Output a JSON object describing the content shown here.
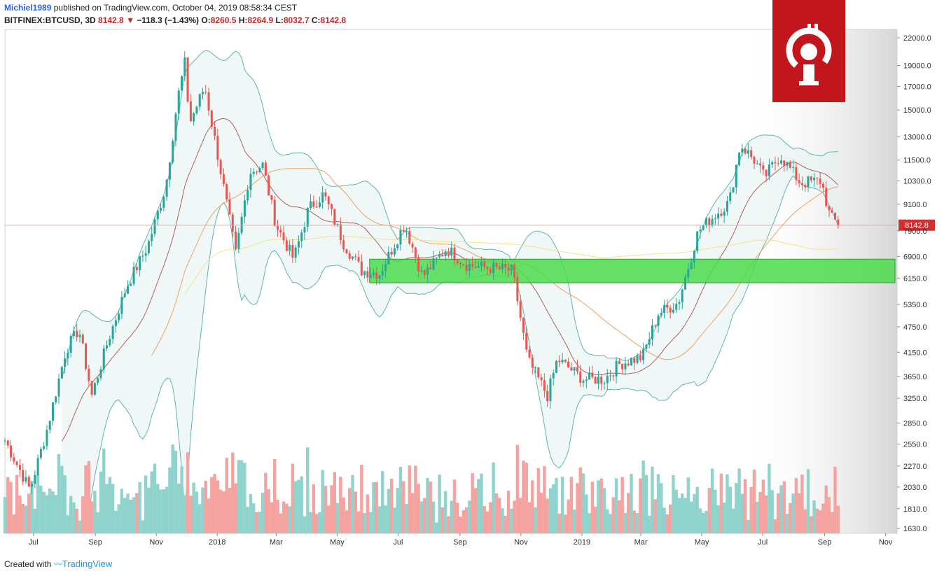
{
  "header": {
    "user": "Michiel1989",
    "published_text": "published on TradingView.com, October 04, 2019 08:58:34 CEST",
    "symbol": "BITFINEX:BTCUSD, 3D",
    "last": "8142.8",
    "change": "−118.3 (−1.43%)",
    "o_label": "O:",
    "o_value": "8260.5",
    "h_label": "H:",
    "h_value": "8264.9",
    "l_label": "L:",
    "l_value": "8032.7",
    "c_label": "C:",
    "c_value": "8142.8"
  },
  "footer": {
    "created_with": "Created with",
    "brand": "TradingView"
  },
  "colors": {
    "up": "#26a69a",
    "down": "#ef5350",
    "support_zone": "#4cdb4c",
    "logo_bg": "#c3161c",
    "price_tag": "#d32f2f"
  },
  "logo": {
    "icon": "bitcoin-info-logo-icon"
  },
  "chart_data": {
    "type": "candlestick",
    "y_scale": "log",
    "ylim": [
      1630,
      22000
    ],
    "y_ticks": [
      22000,
      19000,
      17000,
      15000,
      13000,
      11500,
      10300,
      9100,
      7900,
      6900,
      6150,
      5350,
      4750,
      4150,
      3650,
      3250,
      2850,
      2550,
      2270,
      2030,
      1810,
      1630
    ],
    "y_tick_labels": [
      "22000.0",
      "19000.0",
      "17000.0",
      "15000.0",
      "13000.0",
      "11500.0",
      "10300.0",
      "9100.0",
      "7900.0",
      "6900.0",
      "6150.0",
      "5350.0",
      "4750.0",
      "4150.0",
      "3650.0",
      "3250.0",
      "2850.0",
      "2550.0",
      "2270.0",
      "2030.0",
      "1810.0",
      "1630.0"
    ],
    "x_labels": [
      "Jul",
      "Sep",
      "Nov",
      "2018",
      "Mar",
      "May",
      "Jul",
      "Sep",
      "Nov",
      "2019",
      "Mar",
      "May",
      "Jul",
      "Sep",
      "Nov"
    ],
    "x_label_dates": [
      "2017-07-01",
      "2017-09-01",
      "2017-11-01",
      "2018-01-01",
      "2018-03-01",
      "2018-05-01",
      "2018-07-01",
      "2018-09-01",
      "2018-11-01",
      "2019-01-01",
      "2019-03-01",
      "2019-05-01",
      "2019-07-01",
      "2019-09-01",
      "2019-11-01"
    ],
    "x_range": [
      "2017-06-20",
      "2019-11-30"
    ],
    "last_price": 8142.8,
    "last_price_label": "8142.8",
    "support_zone": {
      "from": "2018-06-20",
      "to": "2019-11-30",
      "low": 6000,
      "high": 6800
    },
    "price_path": [
      {
        "date": "2017-06-20",
        "close": 2600
      },
      {
        "date": "2017-07-15",
        "close": 2000
      },
      {
        "date": "2017-08-01",
        "close": 2750
      },
      {
        "date": "2017-08-20",
        "close": 4200
      },
      {
        "date": "2017-09-02",
        "close": 4700
      },
      {
        "date": "2017-09-15",
        "close": 3300
      },
      {
        "date": "2017-10-01",
        "close": 4400
      },
      {
        "date": "2017-10-20",
        "close": 5900
      },
      {
        "date": "2017-11-10",
        "close": 7300
      },
      {
        "date": "2017-11-28",
        "close": 10000
      },
      {
        "date": "2017-12-10",
        "close": 16000
      },
      {
        "date": "2017-12-17",
        "close": 19200
      },
      {
        "date": "2017-12-22",
        "close": 14000
      },
      {
        "date": "2018-01-06",
        "close": 17000
      },
      {
        "date": "2018-01-20",
        "close": 11500
      },
      {
        "date": "2018-02-06",
        "close": 7000
      },
      {
        "date": "2018-02-20",
        "close": 10800
      },
      {
        "date": "2018-03-05",
        "close": 11200
      },
      {
        "date": "2018-03-18",
        "close": 8200
      },
      {
        "date": "2018-04-05",
        "close": 6800
      },
      {
        "date": "2018-04-20",
        "close": 8900
      },
      {
        "date": "2018-05-05",
        "close": 9600
      },
      {
        "date": "2018-05-25",
        "close": 7400
      },
      {
        "date": "2018-06-12",
        "close": 6400
      },
      {
        "date": "2018-06-30",
        "close": 6300
      },
      {
        "date": "2018-07-25",
        "close": 8200
      },
      {
        "date": "2018-08-12",
        "close": 6200
      },
      {
        "date": "2018-09-05",
        "close": 7200
      },
      {
        "date": "2018-09-25",
        "close": 6600
      },
      {
        "date": "2018-10-15",
        "close": 6500
      },
      {
        "date": "2018-11-10",
        "close": 6400
      },
      {
        "date": "2018-11-25",
        "close": 4000
      },
      {
        "date": "2018-12-15",
        "close": 3300
      },
      {
        "date": "2018-12-25",
        "close": 4000
      },
      {
        "date": "2019-01-20",
        "close": 3600
      },
      {
        "date": "2019-02-10",
        "close": 3600
      },
      {
        "date": "2019-02-25",
        "close": 3900
      },
      {
        "date": "2019-03-20",
        "close": 4050
      },
      {
        "date": "2019-04-05",
        "close": 5100
      },
      {
        "date": "2019-04-25",
        "close": 5400
      },
      {
        "date": "2019-05-15",
        "close": 7900
      },
      {
        "date": "2019-06-01",
        "close": 8600
      },
      {
        "date": "2019-06-15",
        "close": 9200
      },
      {
        "date": "2019-06-26",
        "close": 12500
      },
      {
        "date": "2019-07-10",
        "close": 11500
      },
      {
        "date": "2019-07-20",
        "close": 10500
      },
      {
        "date": "2019-08-05",
        "close": 11800
      },
      {
        "date": "2019-08-25",
        "close": 10200
      },
      {
        "date": "2019-09-15",
        "close": 10300
      },
      {
        "date": "2019-09-24",
        "close": 8500
      },
      {
        "date": "2019-10-04",
        "close": 8142.8
      }
    ]
  }
}
